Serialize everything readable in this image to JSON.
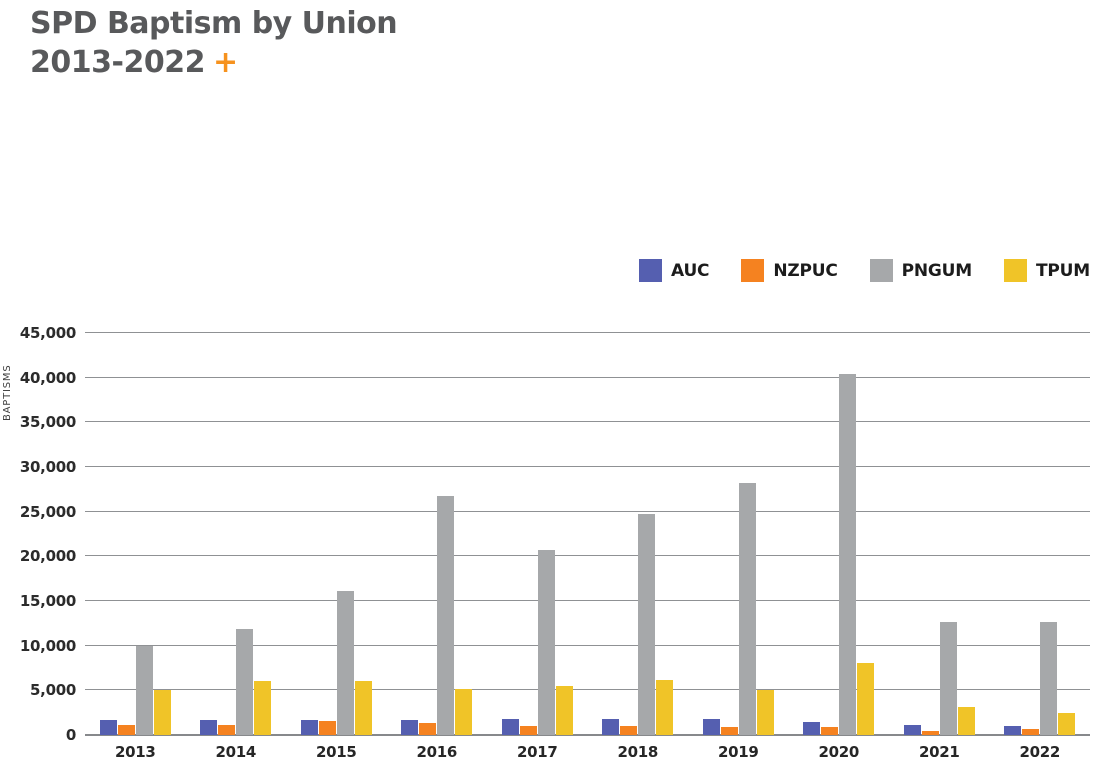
{
  "header": {
    "title_line1": "SPD Baptism by Union",
    "title_line2": "2013-2022",
    "plus_icon": "+"
  },
  "colors": {
    "title": "#58595b",
    "plus": "#f6921e",
    "grid": "#8f9194",
    "axis_text": "#2b2b2b",
    "background": "#ffffff"
  },
  "chart_data": {
    "type": "bar",
    "title": "SPD Baptism by Union 2013-2022",
    "xlabel": "",
    "ylabel": "BAPTISMS",
    "ylim": [
      0,
      45000
    ],
    "ytick_step": 5000,
    "ytick_labels": [
      "0",
      "5,000",
      "10,000",
      "15,000",
      "20,000",
      "25,000",
      "30,000",
      "35,000",
      "40,000",
      "45,000"
    ],
    "grid": true,
    "legend_position": "top-right",
    "categories": [
      "2013",
      "2014",
      "2015",
      "2016",
      "2017",
      "2018",
      "2019",
      "2020",
      "2021",
      "2022"
    ],
    "series": [
      {
        "name": "AUC",
        "color": "#555fb0",
        "values": [
          1700,
          1700,
          1650,
          1650,
          1850,
          1850,
          1800,
          1450,
          1100,
          1050
        ]
      },
      {
        "name": "NZPUC",
        "color": "#f58220",
        "values": [
          1100,
          1100,
          1550,
          1400,
          1050,
          1050,
          950,
          950,
          500,
          650
        ]
      },
      {
        "name": "PNGUM",
        "color": "#a6a8aa",
        "values": [
          10000,
          11900,
          16100,
          26800,
          20700,
          24700,
          28200,
          40400,
          12700,
          12700
        ]
      },
      {
        "name": "TPUM",
        "color": "#f0c428",
        "values": [
          5000,
          6100,
          6100,
          5200,
          5500,
          6200,
          5000,
          8100,
          3100,
          2450
        ]
      }
    ]
  }
}
